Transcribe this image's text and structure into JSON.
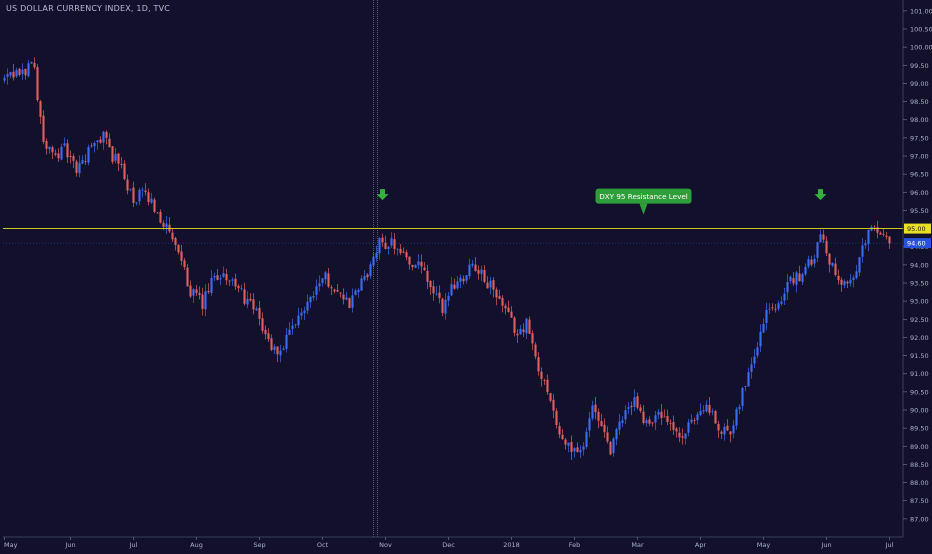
{
  "chart_data": {
    "type": "candlestick",
    "title": "US DOLLAR CURRENCY INDEX, 1D, TVC",
    "ylim": [
      86.5,
      101.3
    ],
    "y_ticks": [
      87.0,
      87.5,
      88.0,
      88.5,
      89.0,
      89.5,
      90.0,
      90.5,
      91.0,
      91.5,
      92.0,
      92.5,
      93.0,
      93.5,
      94.0,
      94.5,
      95.0,
      95.5,
      96.0,
      96.5,
      97.0,
      97.5,
      98.0,
      98.5,
      99.0,
      99.5,
      100.0,
      100.5,
      101.0
    ],
    "y_tick_labels": [
      "87.00",
      "87.50",
      "88.00",
      "88.50",
      "89.00",
      "89.50",
      "90.00",
      "90.50",
      "91.00",
      "91.50",
      "92.00",
      "92.50",
      "93.00",
      "93.50",
      "94.00",
      "94.50",
      "95.00",
      "95.50",
      "96.00",
      "96.50",
      "97.00",
      "97.50",
      "98.00",
      "98.50",
      "99.00",
      "99.50",
      "100.00",
      "100.50",
      "101.00"
    ],
    "x_labels": [
      "May",
      "Jun",
      "Jul",
      "Aug",
      "Sep",
      "Oct",
      "Nov",
      "Dec",
      "2018",
      "Feb",
      "Mar",
      "Apr",
      "May",
      "Jun",
      "Jul"
    ],
    "x_label_index": [
      0,
      22,
      43,
      64,
      85,
      106,
      127,
      148,
      169,
      190,
      211,
      232,
      253,
      274,
      295
    ],
    "num_bars": 300,
    "up_color": "#3d6cf0",
    "down_color": "#e0605f",
    "resistance": {
      "value": 95.0,
      "label": "95.00",
      "color": "#e8e020"
    },
    "last_price": {
      "value": 94.6,
      "label": "94.60",
      "color": "#2a52d8"
    },
    "crosshair_index": 123,
    "annotation": {
      "text": "DXY 95 Resistance Level",
      "anchor_index": 213,
      "color": "#2e9e3a"
    },
    "arrows": [
      {
        "index": 126,
        "value": 95.4
      },
      {
        "index": 272,
        "value": 95.4
      }
    ],
    "path_points": [
      [
        0,
        99.1
      ],
      [
        6,
        99.3
      ],
      [
        10,
        99.6
      ],
      [
        11,
        98.6
      ],
      [
        13,
        97.4
      ],
      [
        16,
        97.0
      ],
      [
        20,
        97.2
      ],
      [
        24,
        96.6
      ],
      [
        28,
        97.1
      ],
      [
        33,
        97.6
      ],
      [
        36,
        97.0
      ],
      [
        39,
        96.7
      ],
      [
        43,
        95.7
      ],
      [
        46,
        96.0
      ],
      [
        50,
        95.6
      ],
      [
        54,
        95.0
      ],
      [
        58,
        94.3
      ],
      [
        62,
        93.3
      ],
      [
        66,
        92.9
      ],
      [
        69,
        93.5
      ],
      [
        73,
        93.8
      ],
      [
        77,
        93.4
      ],
      [
        81,
        93.0
      ],
      [
        85,
        92.5
      ],
      [
        89,
        91.7
      ],
      [
        92,
        91.6
      ],
      [
        96,
        92.2
      ],
      [
        101,
        93.0
      ],
      [
        106,
        93.7
      ],
      [
        110,
        93.4
      ],
      [
        115,
        92.9
      ],
      [
        119,
        93.5
      ],
      [
        123,
        94.1
      ],
      [
        125,
        94.6
      ],
      [
        130,
        94.6
      ],
      [
        135,
        94.1
      ],
      [
        139,
        93.9
      ],
      [
        143,
        93.2
      ],
      [
        146,
        92.8
      ],
      [
        149,
        93.4
      ],
      [
        152,
        93.6
      ],
      [
        156,
        94.1
      ],
      [
        159,
        93.7
      ],
      [
        163,
        93.3
      ],
      [
        167,
        92.7
      ],
      [
        171,
        92.1
      ],
      [
        174,
        92.4
      ],
      [
        178,
        91.1
      ],
      [
        182,
        90.4
      ],
      [
        185,
        89.2
      ],
      [
        188,
        89.0
      ],
      [
        192,
        88.8
      ],
      [
        196,
        90.1
      ],
      [
        199,
        89.4
      ],
      [
        202,
        88.9
      ],
      [
        206,
        89.8
      ],
      [
        210,
        90.3
      ],
      [
        214,
        89.6
      ],
      [
        218,
        89.9
      ],
      [
        222,
        89.5
      ],
      [
        226,
        89.2
      ],
      [
        230,
        89.8
      ],
      [
        234,
        90.2
      ],
      [
        238,
        89.4
      ],
      [
        242,
        89.5
      ],
      [
        246,
        90.5
      ],
      [
        250,
        91.6
      ],
      [
        254,
        92.7
      ],
      [
        258,
        93.0
      ],
      [
        262,
        93.5
      ],
      [
        266,
        93.8
      ],
      [
        270,
        94.2
      ],
      [
        272,
        95.0
      ],
      [
        274,
        94.3
      ],
      [
        276,
        94.0
      ],
      [
        279,
        93.6
      ],
      [
        283,
        93.5
      ],
      [
        286,
        94.5
      ],
      [
        289,
        95.0
      ],
      [
        292,
        94.8
      ],
      [
        295,
        94.6
      ]
    ]
  }
}
